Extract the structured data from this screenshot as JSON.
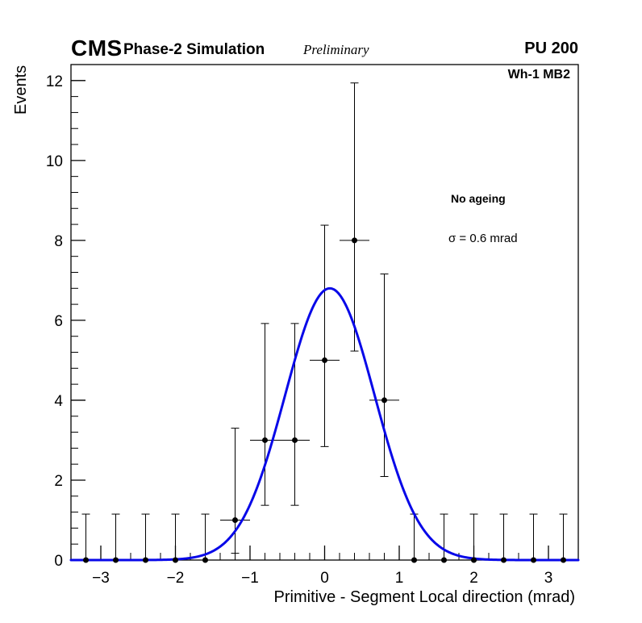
{
  "header": {
    "experiment": "CMS",
    "subtitle": "Phase-2 Simulation",
    "status": "Preliminary",
    "pileup": "PU 200"
  },
  "plot": {
    "region_label": "Wh-1 MB2",
    "annotations": {
      "ageing": "No ageing",
      "resolution": "σ = 0.6 mrad"
    }
  },
  "chart_data": {
    "type": "scatter",
    "title": "",
    "xlabel": "Primitive - Segment Local direction (mrad)",
    "ylabel": "Events",
    "xlim": [
      -3.4,
      3.4
    ],
    "ylim": [
      0,
      12.4
    ],
    "x_major_ticks": [
      -3,
      -2,
      -1,
      0,
      1,
      2,
      3
    ],
    "y_major_ticks": [
      0,
      2,
      4,
      6,
      8,
      10,
      12
    ],
    "x_minor_step": 0.2,
    "y_minor_step": 0.4,
    "bin_half_width": 0.2,
    "grid": false,
    "legend_position": "top-right",
    "marker_color": "#000000",
    "points": [
      {
        "x": -3.2,
        "y": 0,
        "err_low": 0,
        "err_up": 1.15
      },
      {
        "x": -2.8,
        "y": 0,
        "err_low": 0,
        "err_up": 1.15
      },
      {
        "x": -2.4,
        "y": 0,
        "err_low": 0,
        "err_up": 1.15
      },
      {
        "x": -2.0,
        "y": 0,
        "err_low": 0,
        "err_up": 1.15
      },
      {
        "x": -1.6,
        "y": 0,
        "err_low": 0,
        "err_up": 1.15
      },
      {
        "x": -1.2,
        "y": 1,
        "err_low": 0.83,
        "err_up": 2.3
      },
      {
        "x": -0.8,
        "y": 3,
        "err_low": 1.63,
        "err_up": 2.92
      },
      {
        "x": -0.4,
        "y": 3,
        "err_low": 1.63,
        "err_up": 2.92
      },
      {
        "x": 0.0,
        "y": 5,
        "err_low": 2.16,
        "err_up": 3.38
      },
      {
        "x": 0.4,
        "y": 8,
        "err_low": 2.77,
        "err_up": 3.94
      },
      {
        "x": 0.8,
        "y": 4,
        "err_low": 1.91,
        "err_up": 3.16
      },
      {
        "x": 1.2,
        "y": 0,
        "err_low": 0,
        "err_up": 1.15
      },
      {
        "x": 1.6,
        "y": 0,
        "err_low": 0,
        "err_up": 1.15
      },
      {
        "x": 2.0,
        "y": 0,
        "err_low": 0,
        "err_up": 1.15
      },
      {
        "x": 2.4,
        "y": 0,
        "err_low": 0,
        "err_up": 1.15
      },
      {
        "x": 2.8,
        "y": 0,
        "err_low": 0,
        "err_up": 1.15
      },
      {
        "x": 3.2,
        "y": 0,
        "err_low": 0,
        "err_up": 1.15
      }
    ],
    "fit": {
      "type": "gaussian",
      "amplitude": 6.8,
      "mean": 0.07,
      "sigma": 0.6,
      "color": "#0808e8",
      "line_width": 3
    }
  }
}
